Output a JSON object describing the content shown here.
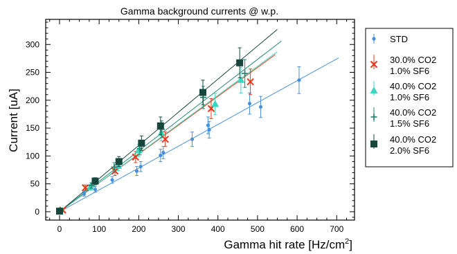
{
  "chart_data": {
    "type": "scatter",
    "title": "Gamma background currents @ w.p.",
    "xlabel": "Gamma hit rate [Hz/cm",
    "xlabel_sup": "2",
    "xlabel_end": "]",
    "ylabel": "Current [uA]",
    "xlim": [
      -35,
      745
    ],
    "ylim": [
      -15,
      345
    ],
    "x_ticks": [
      0,
      100,
      200,
      300,
      400,
      500,
      600,
      700
    ],
    "y_ticks": [
      0,
      50,
      100,
      150,
      200,
      250,
      300
    ],
    "grid": false,
    "legend_position": "right",
    "series": [
      {
        "name": [
          "STD"
        ],
        "color": "#4a90d9",
        "marker": "circle",
        "fit": {
          "x": [
            0,
            705
          ],
          "y": [
            0,
            276
          ]
        },
        "points": [
          {
            "x": 0,
            "y": 1,
            "err": 2
          },
          {
            "x": 62,
            "y": 32,
            "err": 4
          },
          {
            "x": 90,
            "y": 40,
            "err": 5
          },
          {
            "x": 133,
            "y": 57,
            "err": 6
          },
          {
            "x": 195,
            "y": 73,
            "err": 8
          },
          {
            "x": 205,
            "y": 81,
            "err": 9
          },
          {
            "x": 255,
            "y": 101,
            "err": 11
          },
          {
            "x": 262,
            "y": 106,
            "err": 11
          },
          {
            "x": 335,
            "y": 130,
            "err": 13
          },
          {
            "x": 375,
            "y": 155,
            "err": 15
          },
          {
            "x": 378,
            "y": 147,
            "err": 15
          },
          {
            "x": 480,
            "y": 194,
            "err": 19
          },
          {
            "x": 508,
            "y": 188,
            "err": 19
          },
          {
            "x": 605,
            "y": 236,
            "err": 24
          }
        ]
      },
      {
        "name": [
          "30.0% CO2",
          "1.0% SF6"
        ],
        "color": "#e8371a",
        "marker": "cross",
        "fit": {
          "x": [
            0,
            545
          ],
          "y": [
            0,
            282
          ]
        },
        "points": [
          {
            "x": 8,
            "y": 3,
            "err": 3
          },
          {
            "x": 65,
            "y": 43,
            "err": 5
          },
          {
            "x": 140,
            "y": 73,
            "err": 8
          },
          {
            "x": 192,
            "y": 98,
            "err": 10
          },
          {
            "x": 267,
            "y": 130,
            "err": 13
          },
          {
            "x": 383,
            "y": 185,
            "err": 18
          },
          {
            "x": 482,
            "y": 233,
            "err": 23
          }
        ]
      },
      {
        "name": [
          "40.0% CO2",
          "1.0% SF6"
        ],
        "color": "#3ad6c0",
        "marker": "triangle",
        "fit": {
          "x": [
            0,
            550
          ],
          "y": [
            0,
            287
          ]
        },
        "points": [
          {
            "x": 78,
            "y": 44,
            "err": 5
          },
          {
            "x": 148,
            "y": 82,
            "err": 8
          },
          {
            "x": 200,
            "y": 110,
            "err": 11
          },
          {
            "x": 257,
            "y": 141,
            "err": 14
          },
          {
            "x": 393,
            "y": 193,
            "err": 19
          },
          {
            "x": 458,
            "y": 236,
            "err": 23
          }
        ]
      },
      {
        "name": [
          "40.0% CO2",
          "1.5% SF6"
        ],
        "color": "#2a8a73",
        "marker": "plus",
        "fit": {
          "x": [
            0,
            560
          ],
          "y": [
            0,
            306
          ]
        },
        "points": [
          {
            "x": 80,
            "y": 47,
            "err": 5
          },
          {
            "x": 138,
            "y": 80,
            "err": 8
          },
          {
            "x": 203,
            "y": 113,
            "err": 11
          },
          {
            "x": 258,
            "y": 148,
            "err": 15
          },
          {
            "x": 363,
            "y": 205,
            "err": 20
          },
          {
            "x": 468,
            "y": 248,
            "err": 25
          }
        ]
      },
      {
        "name": [
          "40.0% CO2",
          "2.0% SF6"
        ],
        "color": "#17473c",
        "marker": "square",
        "fit": {
          "x": [
            0,
            550
          ],
          "y": [
            0,
            327
          ]
        },
        "points": [
          {
            "x": 0,
            "y": 1,
            "err": 2
          },
          {
            "x": 90,
            "y": 55,
            "err": 6
          },
          {
            "x": 150,
            "y": 90,
            "err": 9
          },
          {
            "x": 207,
            "y": 123,
            "err": 13
          },
          {
            "x": 255,
            "y": 154,
            "err": 16
          },
          {
            "x": 362,
            "y": 214,
            "err": 22
          },
          {
            "x": 455,
            "y": 267,
            "err": 27
          }
        ]
      }
    ]
  }
}
